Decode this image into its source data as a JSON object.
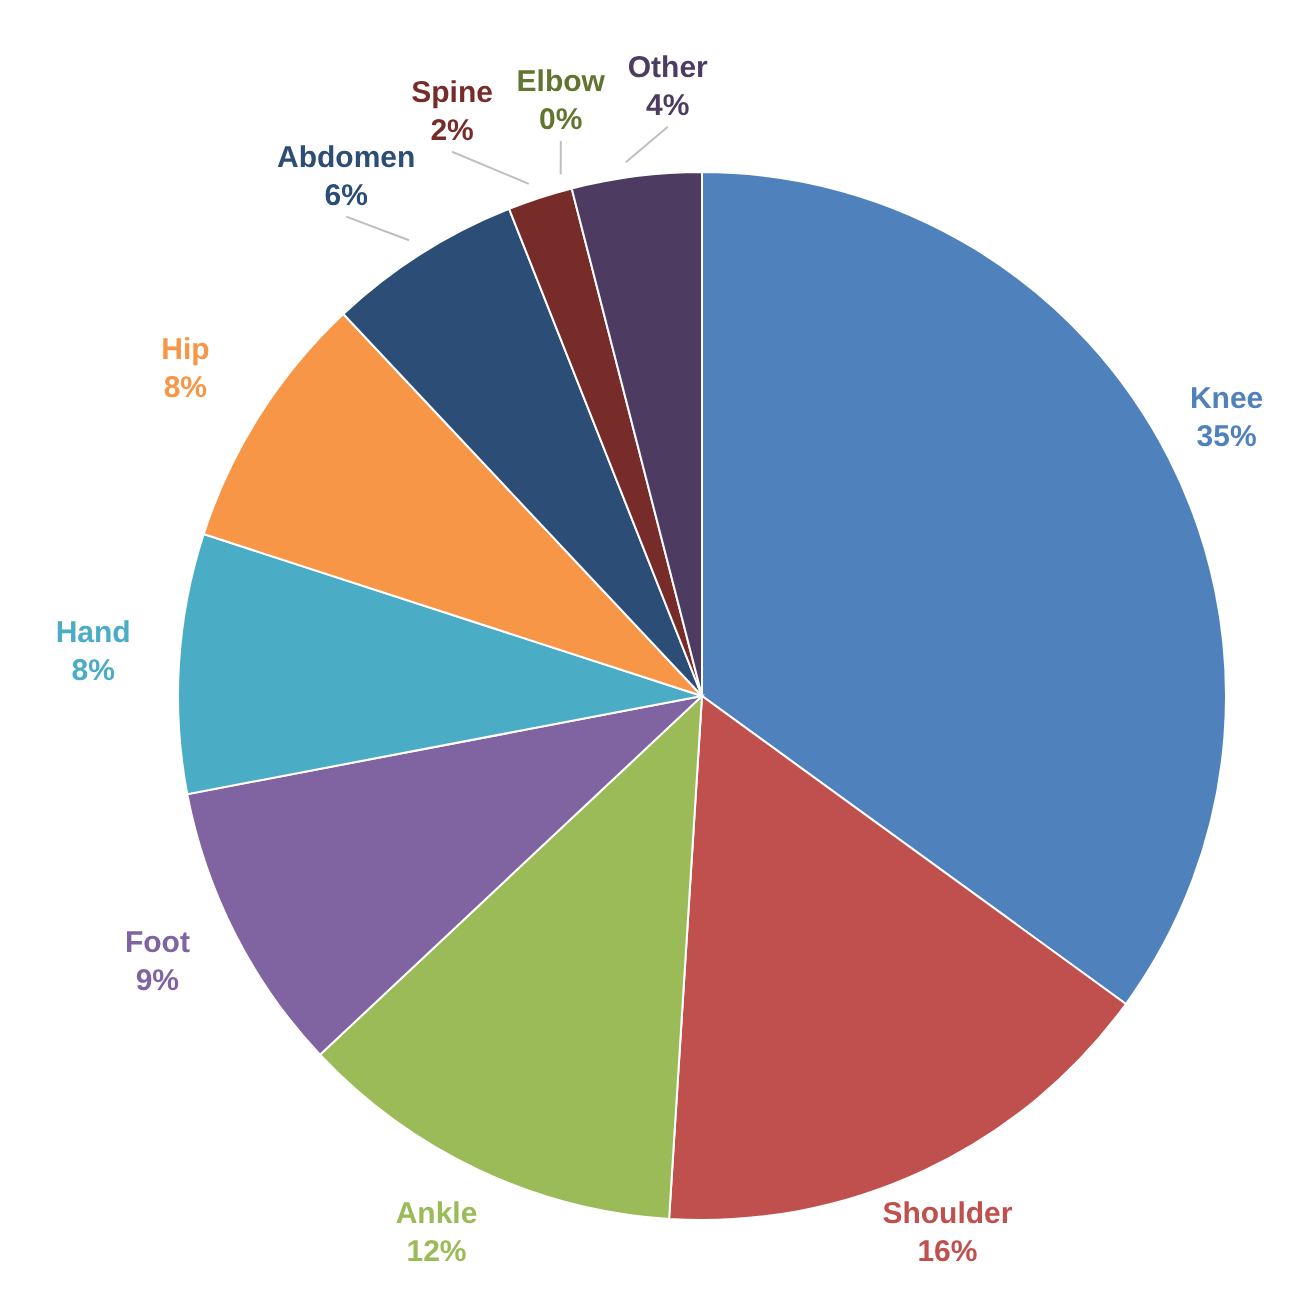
{
  "chart_data": {
    "type": "pie",
    "categories": [
      "Knee",
      "Shoulder",
      "Ankle",
      "Foot",
      "Hand",
      "Hip",
      "Abdomen",
      "Spine",
      "Elbow",
      "Other"
    ],
    "values": [
      35,
      16,
      12,
      9,
      8,
      8,
      6,
      2,
      0,
      4
    ],
    "colors": [
      "#4f81bd",
      "#c0504d",
      "#9bbb59",
      "#8064a2",
      "#4bacc6",
      "#f79646",
      "#2c4d75",
      "#772c2a",
      "#5f7530",
      "#4d3b62"
    ],
    "value_labels": [
      "35%",
      "16%",
      "12%",
      "9%",
      "8%",
      "8%",
      "6%",
      "2%",
      "0%",
      "4%"
    ],
    "legend": false
  }
}
